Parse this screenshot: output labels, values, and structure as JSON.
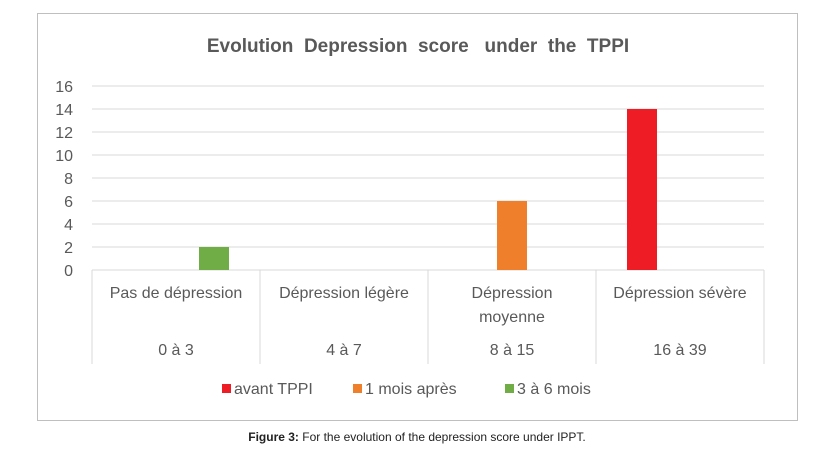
{
  "chart_data": {
    "type": "bar",
    "title": "Evolution  Depression  score   under  the  TPPI",
    "categories": [
      {
        "label_lines": [
          "Pas de dépression"
        ],
        "range": "0 à 3"
      },
      {
        "label_lines": [
          "Dépression légère"
        ],
        "range": "4 à 7"
      },
      {
        "label_lines": [
          "Dépression",
          "moyenne"
        ],
        "range": "8 à 15"
      },
      {
        "label_lines": [
          "Dépression sévère"
        ],
        "range": "16 à 39"
      }
    ],
    "series": [
      {
        "name": "avant TPPI",
        "color": "#ee1c25",
        "values": [
          0,
          0,
          0,
          14
        ]
      },
      {
        "name": "1 mois après",
        "color": "#f07f2b",
        "values": [
          0,
          0,
          6,
          0
        ]
      },
      {
        "name": "3 à 6 mois",
        "color": "#70ad47",
        "values": [
          2,
          0,
          0,
          0
        ]
      }
    ],
    "ylim": [
      0,
      16
    ],
    "yticks": [
      "0",
      "2",
      "4",
      "6",
      "8",
      "10",
      "12",
      "14",
      "16"
    ],
    "grid": true,
    "legend_position": "bottom"
  },
  "caption": {
    "label": "Figure 3:",
    "text": " For the evolution of the depression score under IPPT."
  }
}
